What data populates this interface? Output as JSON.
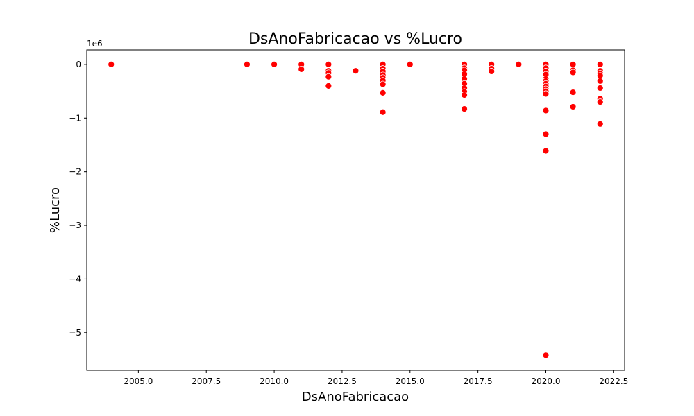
{
  "chart_data": {
    "type": "scatter",
    "title": "DsAnoFabricacao vs %Lucro",
    "xlabel": "DsAnoFabricacao",
    "ylabel": "%Lucro",
    "y_offset_label": "1e6",
    "xlim": [
      2003.1,
      2022.9
    ],
    "ylim": [
      -5.7,
      0.27
    ],
    "x_ticks": [
      2005.0,
      2007.5,
      2010.0,
      2012.5,
      2015.0,
      2017.5,
      2020.0,
      2022.5
    ],
    "x_tick_labels": [
      "2005.0",
      "2007.5",
      "2010.0",
      "2012.5",
      "2015.0",
      "2017.5",
      "2020.0",
      "2022.5"
    ],
    "y_ticks": [
      0,
      -1,
      -2,
      -3,
      -4,
      -5
    ],
    "y_tick_labels": [
      "0",
      "−1",
      "−2",
      "−3",
      "−4",
      "−5"
    ],
    "grid": false,
    "marker_color": "#ff0000",
    "marker_edge_color": "#ffffff",
    "series": [
      {
        "points": [
          [
            2004,
            0
          ],
          [
            2009,
            0
          ],
          [
            2010,
            0
          ],
          [
            2011,
            0
          ],
          [
            2011,
            -0.09
          ],
          [
            2012,
            0
          ],
          [
            2012,
            -0.12
          ],
          [
            2012,
            -0.16
          ],
          [
            2012,
            -0.23
          ],
          [
            2012,
            -0.4
          ],
          [
            2013,
            -0.12
          ],
          [
            2014,
            0
          ],
          [
            2014,
            -0.08
          ],
          [
            2014,
            -0.13
          ],
          [
            2014,
            -0.2
          ],
          [
            2014,
            -0.25
          ],
          [
            2014,
            -0.3
          ],
          [
            2014,
            -0.37
          ],
          [
            2014,
            -0.53
          ],
          [
            2014,
            -0.89
          ],
          [
            2015,
            0
          ],
          [
            2017,
            0
          ],
          [
            2017,
            -0.07
          ],
          [
            2017,
            -0.11
          ],
          [
            2017,
            -0.18
          ],
          [
            2017,
            -0.27
          ],
          [
            2017,
            -0.36
          ],
          [
            2017,
            -0.44
          ],
          [
            2017,
            -0.51
          ],
          [
            2017,
            -0.57
          ],
          [
            2017,
            -0.83
          ],
          [
            2018,
            0
          ],
          [
            2018,
            -0.08
          ],
          [
            2018,
            -0.13
          ],
          [
            2019,
            0
          ],
          [
            2020,
            0
          ],
          [
            2020,
            -0.07
          ],
          [
            2020,
            -0.13
          ],
          [
            2020,
            -0.19
          ],
          [
            2020,
            -0.27
          ],
          [
            2020,
            -0.31
          ],
          [
            2020,
            -0.36
          ],
          [
            2020,
            -0.41
          ],
          [
            2020,
            -0.46
          ],
          [
            2020,
            -0.5
          ],
          [
            2020,
            -0.55
          ],
          [
            2020,
            -0.86
          ],
          [
            2020,
            -1.3
          ],
          [
            2020,
            -1.61
          ],
          [
            2020,
            -5.42
          ],
          [
            2021,
            0
          ],
          [
            2021,
            -0.11
          ],
          [
            2021,
            -0.15
          ],
          [
            2021,
            -0.52
          ],
          [
            2021,
            -0.79
          ],
          [
            2022,
            0
          ],
          [
            2022,
            -0.12
          ],
          [
            2022,
            -0.17
          ],
          [
            2022,
            -0.21
          ],
          [
            2022,
            -0.31
          ],
          [
            2022,
            -0.44
          ],
          [
            2022,
            -0.64
          ],
          [
            2022,
            -0.7
          ],
          [
            2022,
            -1.11
          ]
        ]
      }
    ]
  }
}
